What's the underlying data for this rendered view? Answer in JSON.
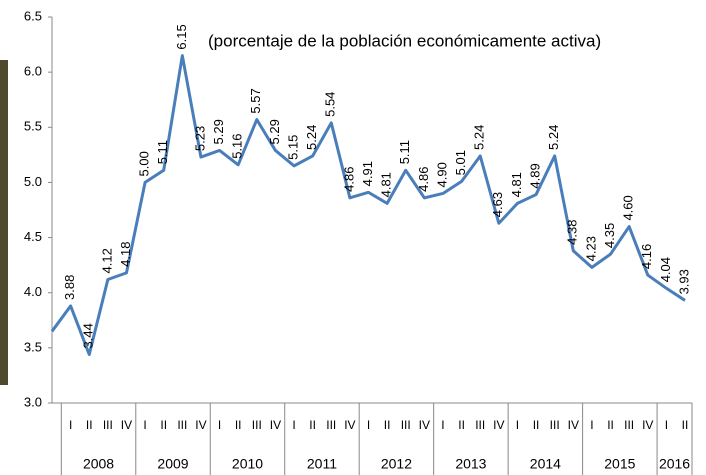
{
  "chart_data": {
    "type": "line",
    "subtitle": "(porcentaje de la población económicamente activa)",
    "categories": [
      null,
      "I",
      "II",
      "III",
      "IV",
      "I",
      "II",
      "III",
      "IV",
      "I",
      "II",
      "III",
      "IV",
      "I",
      "II",
      "III",
      "IV",
      "I",
      "II",
      "III",
      "IV",
      "I",
      "II",
      "III",
      "IV",
      "I",
      "II",
      "III",
      "IV",
      "I",
      "II",
      "III",
      "IV",
      "I",
      "II"
    ],
    "years": [
      "2008",
      "2009",
      "2010",
      "2011",
      "2012",
      "2013",
      "2014",
      "2015",
      "2016"
    ],
    "values": [
      3.65,
      3.88,
      3.44,
      4.12,
      4.18,
      5.0,
      5.11,
      6.15,
      5.23,
      5.29,
      5.16,
      5.57,
      5.29,
      5.15,
      5.24,
      5.54,
      4.86,
      4.91,
      4.81,
      5.11,
      4.86,
      4.9,
      5.01,
      5.24,
      4.63,
      4.81,
      4.89,
      5.24,
      4.38,
      4.23,
      4.35,
      4.6,
      4.16,
      4.04,
      3.93
    ],
    "value_labels": [
      null,
      "3.88",
      "3.44",
      "4.12",
      "4.18",
      "5.00",
      "5.11",
      "6.15",
      "5.23",
      "5.29",
      "5.16",
      "5.57",
      "5.29",
      "5.15",
      "5.24",
      "5.54",
      "4.86",
      "4.91",
      "4.81",
      "5.11",
      "4.86",
      "4.90",
      "5.01",
      "5.24",
      "4.63",
      "4.81",
      "4.89",
      "5.24",
      "4.38",
      "4.23",
      "4.35",
      "4.60",
      "4.16",
      "4.04",
      "3.93"
    ],
    "color": "#4a7ebb",
    "ylim": [
      3.0,
      6.5
    ],
    "yticks": [
      {
        "value": 3,
        "label": "3.0"
      },
      3.5,
      {
        "value": 4,
        "label": "4.0"
      },
      4.5,
      {
        "value": 5,
        "label": "5.0"
      },
      5.5,
      {
        "value": 6,
        "label": "6.0"
      },
      6.5
    ]
  }
}
